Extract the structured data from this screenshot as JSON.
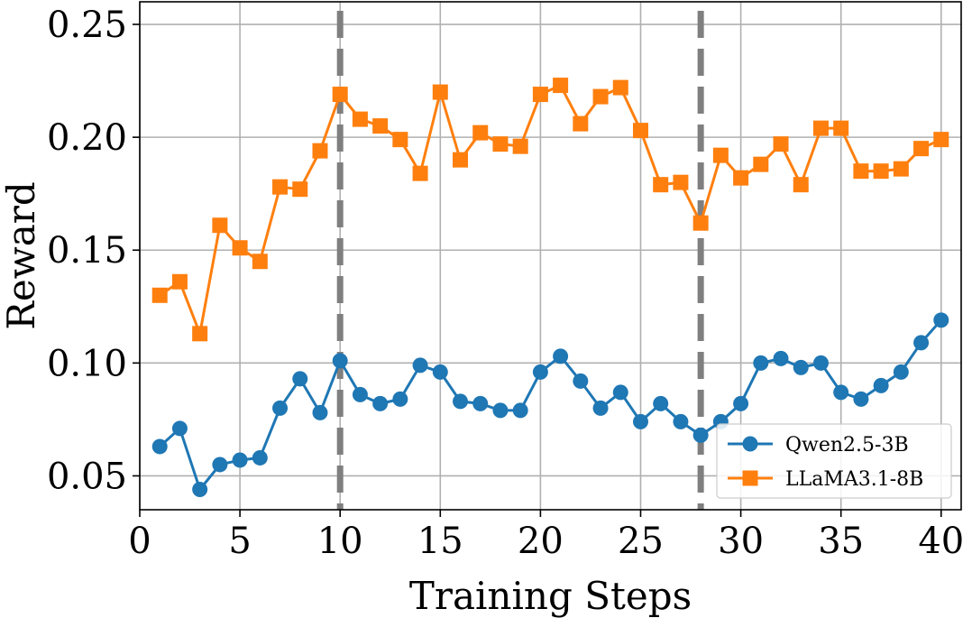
{
  "chart_data": {
    "type": "line",
    "title": "",
    "xlabel": "Training Steps",
    "ylabel": "Reward",
    "xlim": [
      0,
      41
    ],
    "ylim": [
      0.035,
      0.26
    ],
    "xticks": [
      0,
      5,
      10,
      15,
      20,
      25,
      30,
      35,
      40
    ],
    "xtick_labels": [
      "0",
      "5",
      "10",
      "15",
      "20",
      "25",
      "30",
      "35",
      "40"
    ],
    "yticks": [
      0.05,
      0.1,
      0.15,
      0.2,
      0.25
    ],
    "ytick_labels": [
      "0.05",
      "0.10",
      "0.15",
      "0.20",
      "0.25"
    ],
    "grid": true,
    "legend_position": "lower-right",
    "vertical_lines": [
      {
        "x": 10,
        "style": "dashed",
        "color": "#7f7f7f"
      },
      {
        "x": 28,
        "style": "dashed",
        "color": "#7f7f7f"
      }
    ],
    "x": [
      1,
      2,
      3,
      4,
      5,
      6,
      7,
      8,
      9,
      10,
      11,
      12,
      13,
      14,
      15,
      16,
      17,
      18,
      19,
      20,
      21,
      22,
      23,
      24,
      25,
      26,
      27,
      28,
      29,
      30,
      31,
      32,
      33,
      34,
      35,
      36,
      37,
      38,
      39,
      40
    ],
    "series": [
      {
        "name": "Qwen2.5-3B",
        "color": "#1f77b4",
        "marker": "circle",
        "values": [
          0.063,
          0.071,
          0.044,
          0.055,
          0.057,
          0.058,
          0.08,
          0.093,
          0.078,
          0.101,
          0.086,
          0.082,
          0.084,
          0.099,
          0.096,
          0.083,
          0.082,
          0.079,
          0.079,
          0.096,
          0.103,
          0.092,
          0.08,
          0.087,
          0.074,
          0.082,
          0.074,
          0.068,
          0.074,
          0.082,
          0.1,
          0.102,
          0.098,
          0.1,
          0.087,
          0.084,
          0.09,
          0.096,
          0.109,
          0.119
        ]
      },
      {
        "name": "LLaMA3.1-8B",
        "color": "#ff7f0e",
        "marker": "square",
        "values": [
          0.13,
          0.136,
          0.113,
          0.161,
          0.151,
          0.145,
          0.178,
          0.177,
          0.194,
          0.219,
          0.208,
          0.205,
          0.199,
          0.184,
          0.22,
          0.19,
          0.202,
          0.197,
          0.196,
          0.219,
          0.223,
          0.206,
          0.218,
          0.222,
          0.203,
          0.179,
          0.18,
          0.162,
          0.192,
          0.182,
          0.188,
          0.197,
          0.179,
          0.204,
          0.204,
          0.185,
          0.185,
          0.186,
          0.195,
          0.199
        ]
      }
    ]
  }
}
